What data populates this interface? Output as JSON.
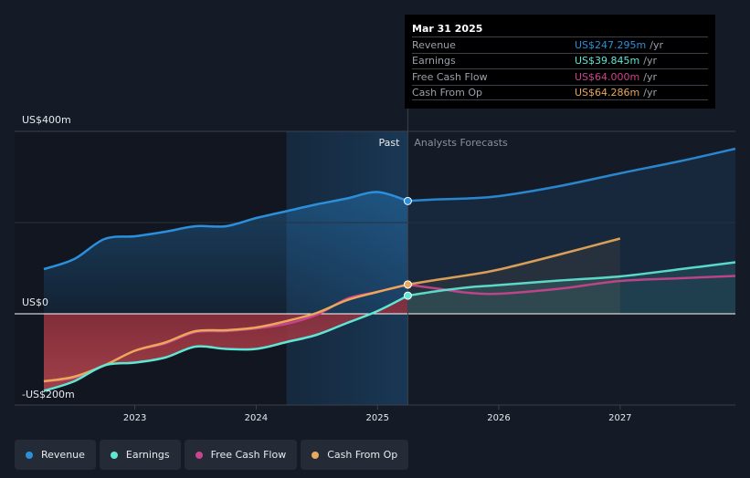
{
  "chart_data": {
    "type": "line",
    "y_unit_labels": {
      "top": "US$400m",
      "zero": "US$0",
      "bottom": "-US$200m"
    },
    "ylim": [
      -200,
      400
    ],
    "xlim": [
      2022.25,
      2027.95
    ],
    "x_ticks": [
      {
        "value": 2023,
        "label": "2023"
      },
      {
        "value": 2024,
        "label": "2024"
      },
      {
        "value": 2025,
        "label": "2025"
      },
      {
        "value": 2026,
        "label": "2026"
      },
      {
        "value": 2027,
        "label": "2027"
      }
    ],
    "past_label": "Past",
    "forecast_label": "Analysts Forecasts",
    "highlight_start": 2024.25,
    "divider_x": 2025.25,
    "series": [
      {
        "key": "revenue",
        "name": "Revenue",
        "color": "#2b8fdc",
        "history": [
          [
            2022.25,
            98
          ],
          [
            2022.5,
            120
          ],
          [
            2022.75,
            164
          ],
          [
            2023.0,
            170
          ],
          [
            2023.25,
            180
          ],
          [
            2023.5,
            192
          ],
          [
            2023.75,
            192
          ],
          [
            2024.0,
            210
          ],
          [
            2024.25,
            225
          ],
          [
            2024.5,
            240
          ],
          [
            2024.75,
            253
          ],
          [
            2025.0,
            267
          ],
          [
            2025.25,
            247.3
          ]
        ],
        "forecast": [
          [
            2025.25,
            247.3
          ],
          [
            2025.5,
            251
          ],
          [
            2025.75,
            253
          ],
          [
            2026.0,
            258
          ],
          [
            2026.5,
            280
          ],
          [
            2027.0,
            308
          ],
          [
            2027.5,
            335
          ],
          [
            2027.95,
            362
          ]
        ]
      },
      {
        "key": "earnings",
        "name": "Earnings",
        "color": "#5fe6d4",
        "history": [
          [
            2022.25,
            -169
          ],
          [
            2022.5,
            -148
          ],
          [
            2022.75,
            -113
          ],
          [
            2023.0,
            -107
          ],
          [
            2023.25,
            -96
          ],
          [
            2023.5,
            -72
          ],
          [
            2023.75,
            -77
          ],
          [
            2024.0,
            -77
          ],
          [
            2024.25,
            -62
          ],
          [
            2024.5,
            -46
          ],
          [
            2024.75,
            -20
          ],
          [
            2025.0,
            6
          ],
          [
            2025.25,
            39.8
          ]
        ],
        "forecast": [
          [
            2025.25,
            39.8
          ],
          [
            2025.5,
            50
          ],
          [
            2025.75,
            58
          ],
          [
            2026.0,
            63
          ],
          [
            2026.5,
            73
          ],
          [
            2027.0,
            82
          ],
          [
            2027.5,
            98
          ],
          [
            2027.95,
            113
          ]
        ]
      },
      {
        "key": "free_cash_flow",
        "name": "Free Cash Flow",
        "color": "#c9448e",
        "history": [
          [
            2022.25,
            -148
          ],
          [
            2022.5,
            -140
          ],
          [
            2022.75,
            -113
          ],
          [
            2023.0,
            -81
          ],
          [
            2023.25,
            -65
          ],
          [
            2023.5,
            -40
          ],
          [
            2023.75,
            -38
          ],
          [
            2024.0,
            -32
          ],
          [
            2024.25,
            -22
          ],
          [
            2024.5,
            -2
          ],
          [
            2024.75,
            33
          ],
          [
            2025.0,
            48
          ],
          [
            2025.25,
            64.0
          ]
        ],
        "forecast": [
          [
            2025.25,
            64.0
          ],
          [
            2025.5,
            55
          ],
          [
            2025.75,
            46
          ],
          [
            2026.0,
            44
          ],
          [
            2026.5,
            55
          ],
          [
            2027.0,
            72
          ],
          [
            2027.5,
            78
          ],
          [
            2027.95,
            83
          ]
        ]
      },
      {
        "key": "cash_from_op",
        "name": "Cash From Op",
        "color": "#eaa85a",
        "history": [
          [
            2022.25,
            -148
          ],
          [
            2022.5,
            -138
          ],
          [
            2022.75,
            -113
          ],
          [
            2023.0,
            -81
          ],
          [
            2023.25,
            -63
          ],
          [
            2023.5,
            -38
          ],
          [
            2023.75,
            -36
          ],
          [
            2024.0,
            -30
          ],
          [
            2024.25,
            -16
          ],
          [
            2024.5,
            2
          ],
          [
            2024.75,
            30
          ],
          [
            2025.0,
            48
          ],
          [
            2025.25,
            64.3
          ]
        ],
        "forecast": [
          [
            2025.25,
            64.3
          ],
          [
            2025.5,
            75
          ],
          [
            2025.75,
            85
          ],
          [
            2026.0,
            97
          ],
          [
            2026.5,
            130
          ],
          [
            2027.0,
            165
          ]
        ]
      }
    ],
    "tooltip": {
      "date": "Mar 31 2025",
      "rows": [
        {
          "name": "Revenue",
          "value": "US$247.295m",
          "unit": "/yr",
          "color": "#2b8fdc"
        },
        {
          "name": "Earnings",
          "value": "US$39.845m",
          "unit": "/yr",
          "color": "#5fe6d4"
        },
        {
          "name": "Free Cash Flow",
          "value": "US$64.000m",
          "unit": "/yr",
          "color": "#c9448e"
        },
        {
          "name": "Cash From Op",
          "value": "US$64.286m",
          "unit": "/yr",
          "color": "#eaa85a"
        }
      ]
    }
  },
  "legend": [
    {
      "label": "Revenue",
      "color": "#2b8fdc"
    },
    {
      "label": "Earnings",
      "color": "#5fe6d4"
    },
    {
      "label": "Free Cash Flow",
      "color": "#c9448e"
    },
    {
      "label": "Cash From Op",
      "color": "#eaa85a"
    }
  ]
}
